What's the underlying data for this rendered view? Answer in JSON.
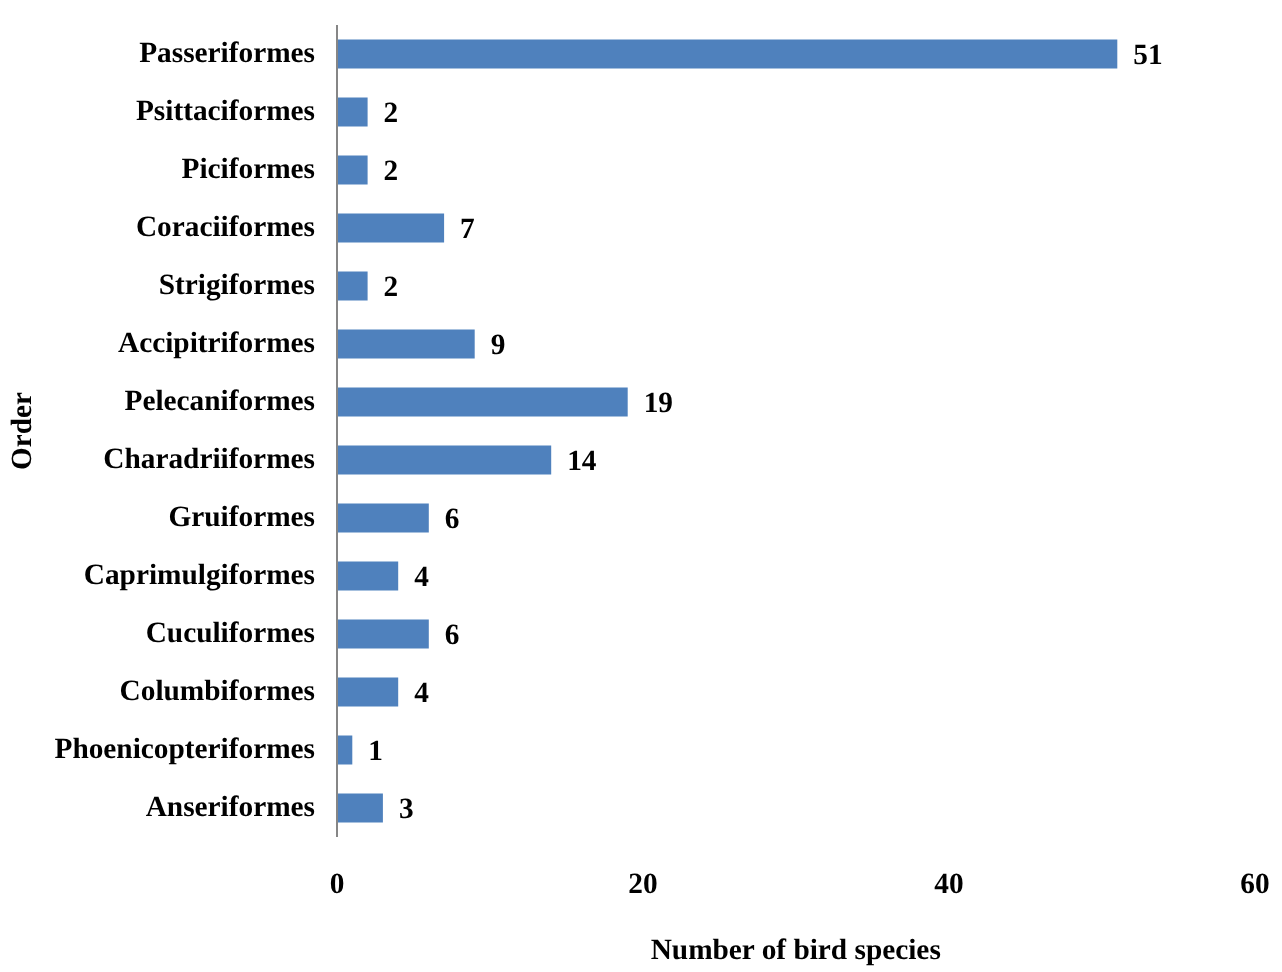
{
  "chart_data": {
    "type": "bar",
    "orientation": "horizontal",
    "xlabel": "Number of bird species",
    "ylabel": "Order",
    "categories": [
      "Passeriformes",
      "Psittaciformes",
      "Piciformes",
      "Coraciiformes",
      "Strigiformes",
      "Accipitriformes",
      "Pelecaniformes",
      "Charadriiformes",
      "Gruiformes",
      "Caprimulgiformes",
      "Cuculiformes",
      "Columbiformes",
      "Phoenicopteriformes",
      "Anseriformes"
    ],
    "values": [
      51,
      2,
      2,
      7,
      2,
      9,
      19,
      14,
      6,
      4,
      6,
      4,
      1,
      3
    ],
    "color": "#4f81bd",
    "xlim": [
      0,
      60
    ],
    "xticks": [
      0,
      20,
      40,
      60
    ],
    "grid": false,
    "data_labels": true
  }
}
